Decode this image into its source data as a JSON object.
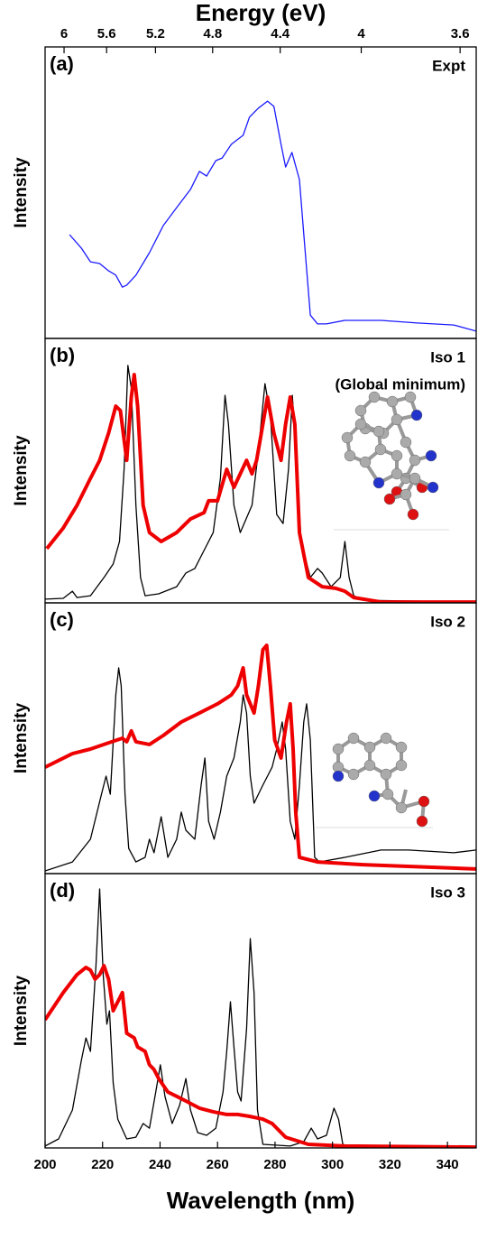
{
  "chart_data": [
    {
      "type": "line",
      "label": "(a)",
      "annotations": [
        "Expt"
      ],
      "ylabel": "Intensity",
      "x2label": "Energy (eV)",
      "x2ticks": [
        {
          "value": 206.6,
          "label": "6"
        },
        {
          "value": 221.4,
          "label": "5.6"
        },
        {
          "value": 238.4,
          "label": "5.2"
        },
        {
          "value": 258.3,
          "label": "4.8"
        },
        {
          "value": 281.8,
          "label": "4.4"
        },
        {
          "value": 310.0,
          "label": "4"
        },
        {
          "value": 344.4,
          "label": "3.6"
        }
      ],
      "xlim": [
        200,
        350
      ],
      "ylim": [
        0,
        1
      ],
      "series": [
        {
          "color": "#1a1aff",
          "x": [
            208.5,
            212.6,
            215.8,
            219.0,
            222.1,
            224.6,
            226.9,
            228.4,
            231.6,
            236.3,
            241.1,
            245.8,
            250.6,
            253.7,
            256.2,
            259.4,
            261.6,
            264.8,
            268.9,
            271.1,
            274.2,
            277.4,
            279.6,
            282.1,
            283.7,
            285.9,
            288.5,
            290.0,
            292.3,
            294.8,
            297.9,
            304.3,
            316.9,
            329.5,
            342.2,
            350
          ],
          "values": [
            0.356,
            0.31,
            0.263,
            0.257,
            0.232,
            0.217,
            0.176,
            0.183,
            0.217,
            0.294,
            0.387,
            0.449,
            0.511,
            0.573,
            0.557,
            0.61,
            0.619,
            0.666,
            0.697,
            0.759,
            0.79,
            0.814,
            0.796,
            0.666,
            0.588,
            0.638,
            0.545,
            0.359,
            0.08,
            0.05,
            0.05,
            0.062,
            0.062,
            0.053,
            0.046,
            0.025
          ]
        }
      ]
    },
    {
      "type": "line",
      "label": "(b)",
      "annotations": [
        "Iso 1",
        "(Global minimum)"
      ],
      "ylabel": "Intensity",
      "xlim": [
        200,
        350
      ],
      "ylim": [
        0,
        1
      ],
      "series": [
        {
          "color": "#000000",
          "x": [
            200,
            206.3,
            209.5,
            211.1,
            215.8,
            220.5,
            223.7,
            225.9,
            227.5,
            228.8,
            230.0,
            231.6,
            233.2,
            234.8,
            239.5,
            245.8,
            249.0,
            252.1,
            255.3,
            258.5,
            261.0,
            262.6,
            263.8,
            265.7,
            267.9,
            272.0,
            274.2,
            276.5,
            278.4,
            280.6,
            282.8,
            284.7,
            286.0,
            286.9,
            289.1,
            292.3,
            294.8,
            296.4,
            299.5,
            302.7,
            304.3,
            305.8,
            307.4,
            310.6,
            350
          ],
          "values": [
            0.014,
            0.017,
            0.044,
            0.02,
            0.027,
            0.096,
            0.147,
            0.232,
            0.505,
            0.898,
            0.812,
            0.369,
            0.096,
            0.027,
            0.034,
            0.061,
            0.113,
            0.13,
            0.198,
            0.266,
            0.471,
            0.785,
            0.676,
            0.369,
            0.266,
            0.369,
            0.574,
            0.829,
            0.71,
            0.334,
            0.3,
            0.505,
            0.785,
            0.648,
            0.232,
            0.096,
            0.13,
            0.113,
            0.061,
            0.096,
            0.232,
            0.096,
            0.027,
            0.01,
            0.003
          ]
        },
        {
          "color": "#ee0000",
          "x": [
            200.6,
            206.3,
            211.1,
            215.8,
            219.0,
            222.1,
            224.6,
            226.2,
            228.4,
            230.0,
            231.0,
            232.2,
            234.1,
            236.3,
            240.4,
            245.8,
            249.0,
            250.6,
            255.3,
            256.9,
            260.0,
            263.2,
            265.7,
            267.9,
            270.1,
            272.0,
            273.6,
            275.8,
            277.4,
            279.6,
            282.1,
            283.7,
            285.3,
            286.9,
            288.5,
            291.6,
            296.4,
            301.1,
            304.3,
            307.4,
            316.9,
            350
          ],
          "values": [
            0.205,
            0.283,
            0.369,
            0.471,
            0.539,
            0.642,
            0.744,
            0.727,
            0.539,
            0.778,
            0.863,
            0.744,
            0.369,
            0.266,
            0.232,
            0.266,
            0.3,
            0.317,
            0.341,
            0.386,
            0.386,
            0.505,
            0.437,
            0.488,
            0.539,
            0.488,
            0.539,
            0.676,
            0.778,
            0.642,
            0.539,
            0.676,
            0.778,
            0.676,
            0.266,
            0.096,
            0.061,
            0.055,
            0.044,
            0.02,
            0.003,
            0.003
          ]
        }
      ]
    },
    {
      "type": "line",
      "label": "(c)",
      "annotations": [
        "Iso 2"
      ],
      "ylabel": "Intensity",
      "xlim": [
        200,
        350
      ],
      "ylim": [
        0,
        1
      ],
      "series": [
        {
          "color": "#000000",
          "x": [
            200,
            209.5,
            215.8,
            219.6,
            221.2,
            222.7,
            224.6,
            225.6,
            226.5,
            227.8,
            229.1,
            231.6,
            234.8,
            236.3,
            237.9,
            240.4,
            242.7,
            245.8,
            247.4,
            249.0,
            252.1,
            254.3,
            255.6,
            256.9,
            258.8,
            261.0,
            263.2,
            265.7,
            267.9,
            268.9,
            270.1,
            271.4,
            272.7,
            274.2,
            275.8,
            277.4,
            279.0,
            280.6,
            282.5,
            283.7,
            285.3,
            286.9,
            288.5,
            290.0,
            291.0,
            292.3,
            293.8,
            295.4,
            304.3,
            316.9,
            326.4,
            342.2,
            350
          ],
          "values": [
            0.01,
            0.043,
            0.127,
            0.293,
            0.36,
            0.293,
            0.66,
            0.76,
            0.693,
            0.293,
            0.093,
            0.043,
            0.06,
            0.127,
            0.077,
            0.21,
            0.06,
            0.127,
            0.227,
            0.16,
            0.127,
            0.327,
            0.427,
            0.193,
            0.127,
            0.227,
            0.36,
            0.427,
            0.56,
            0.66,
            0.593,
            0.36,
            0.26,
            0.293,
            0.327,
            0.36,
            0.393,
            0.46,
            0.56,
            0.46,
            0.193,
            0.127,
            0.327,
            0.56,
            0.627,
            0.493,
            0.06,
            0.043,
            0.06,
            0.087,
            0.087,
            0.077,
            0.087
          ]
        },
        {
          "color": "#ee0000",
          "x": [
            200,
            209.5,
            215.8,
            222.1,
            226.9,
            228.4,
            230.0,
            231.6,
            236.3,
            241.1,
            247.4,
            253.7,
            260.0,
            264.8,
            267.0,
            268.9,
            270.1,
            272.7,
            274.2,
            275.8,
            277.1,
            278.4,
            279.9,
            282.1,
            284.0,
            285.3,
            286.3,
            287.2,
            288.5,
            294.8,
            310.6,
            350
          ],
          "values": [
            0.393,
            0.443,
            0.46,
            0.483,
            0.5,
            0.487,
            0.527,
            0.487,
            0.477,
            0.51,
            0.56,
            0.593,
            0.627,
            0.66,
            0.693,
            0.76,
            0.66,
            0.593,
            0.693,
            0.827,
            0.843,
            0.693,
            0.493,
            0.427,
            0.56,
            0.627,
            0.46,
            0.227,
            0.06,
            0.043,
            0.033,
            0.017
          ]
        }
      ]
    },
    {
      "type": "line",
      "label": "(d)",
      "annotations": [
        "Iso 3"
      ],
      "ylabel": "Intensity",
      "xlabel": "Wavelength (nm)",
      "xticks": [
        200,
        220,
        240,
        260,
        280,
        300,
        320,
        340
      ],
      "xlim": [
        200,
        350
      ],
      "ylim": [
        0,
        1
      ],
      "series": [
        {
          "color": "#000000",
          "x": [
            200,
            204.7,
            209.5,
            212.6,
            214.2,
            215.8,
            217.7,
            219.0,
            220.2,
            221.5,
            222.4,
            223.7,
            225.3,
            228.4,
            231.6,
            234.1,
            236.3,
            238.5,
            240.1,
            241.7,
            244.2,
            246.8,
            249.0,
            250.6,
            253.1,
            256.2,
            259.4,
            261.9,
            263.2,
            264.5,
            265.7,
            267.0,
            268.2,
            270.1,
            271.4,
            272.7,
            273.9,
            275.8,
            285.3,
            290.0,
            292.6,
            294.8,
            297.9,
            300.5,
            302.1,
            303.6,
            307.4
          ],
          "values": [
            0.007,
            0.033,
            0.138,
            0.319,
            0.401,
            0.352,
            0.664,
            0.944,
            0.632,
            0.451,
            0.5,
            0.237,
            0.105,
            0.033,
            0.039,
            0.089,
            0.072,
            0.204,
            0.303,
            0.188,
            0.089,
            0.155,
            0.253,
            0.138,
            0.056,
            0.046,
            0.072,
            0.204,
            0.352,
            0.533,
            0.368,
            0.204,
            0.171,
            0.434,
            0.763,
            0.566,
            0.138,
            0.013,
            0.007,
            0.023,
            0.072,
            0.033,
            0.046,
            0.145,
            0.105,
            0.013,
            0
          ]
        },
        {
          "color": "#ee0000",
          "x": [
            200,
            206.3,
            211.1,
            214.2,
            215.8,
            217.4,
            219.0,
            220.5,
            222.1,
            223.7,
            225.3,
            226.9,
            228.4,
            231.0,
            232.2,
            234.8,
            236.3,
            237.9,
            239.5,
            242.7,
            245.8,
            249.0,
            253.7,
            258.5,
            263.2,
            267.0,
            271.1,
            275.8,
            279.0,
            283.7,
            291.6,
            304.3,
            350
          ],
          "values": [
            0.467,
            0.566,
            0.632,
            0.658,
            0.648,
            0.615,
            0.632,
            0.664,
            0.615,
            0.5,
            0.533,
            0.566,
            0.418,
            0.401,
            0.368,
            0.352,
            0.303,
            0.286,
            0.253,
            0.204,
            0.188,
            0.171,
            0.145,
            0.132,
            0.122,
            0.122,
            0.115,
            0.105,
            0.089,
            0.039,
            0.013,
            0.007,
            0.003
          ]
        }
      ]
    }
  ]
}
